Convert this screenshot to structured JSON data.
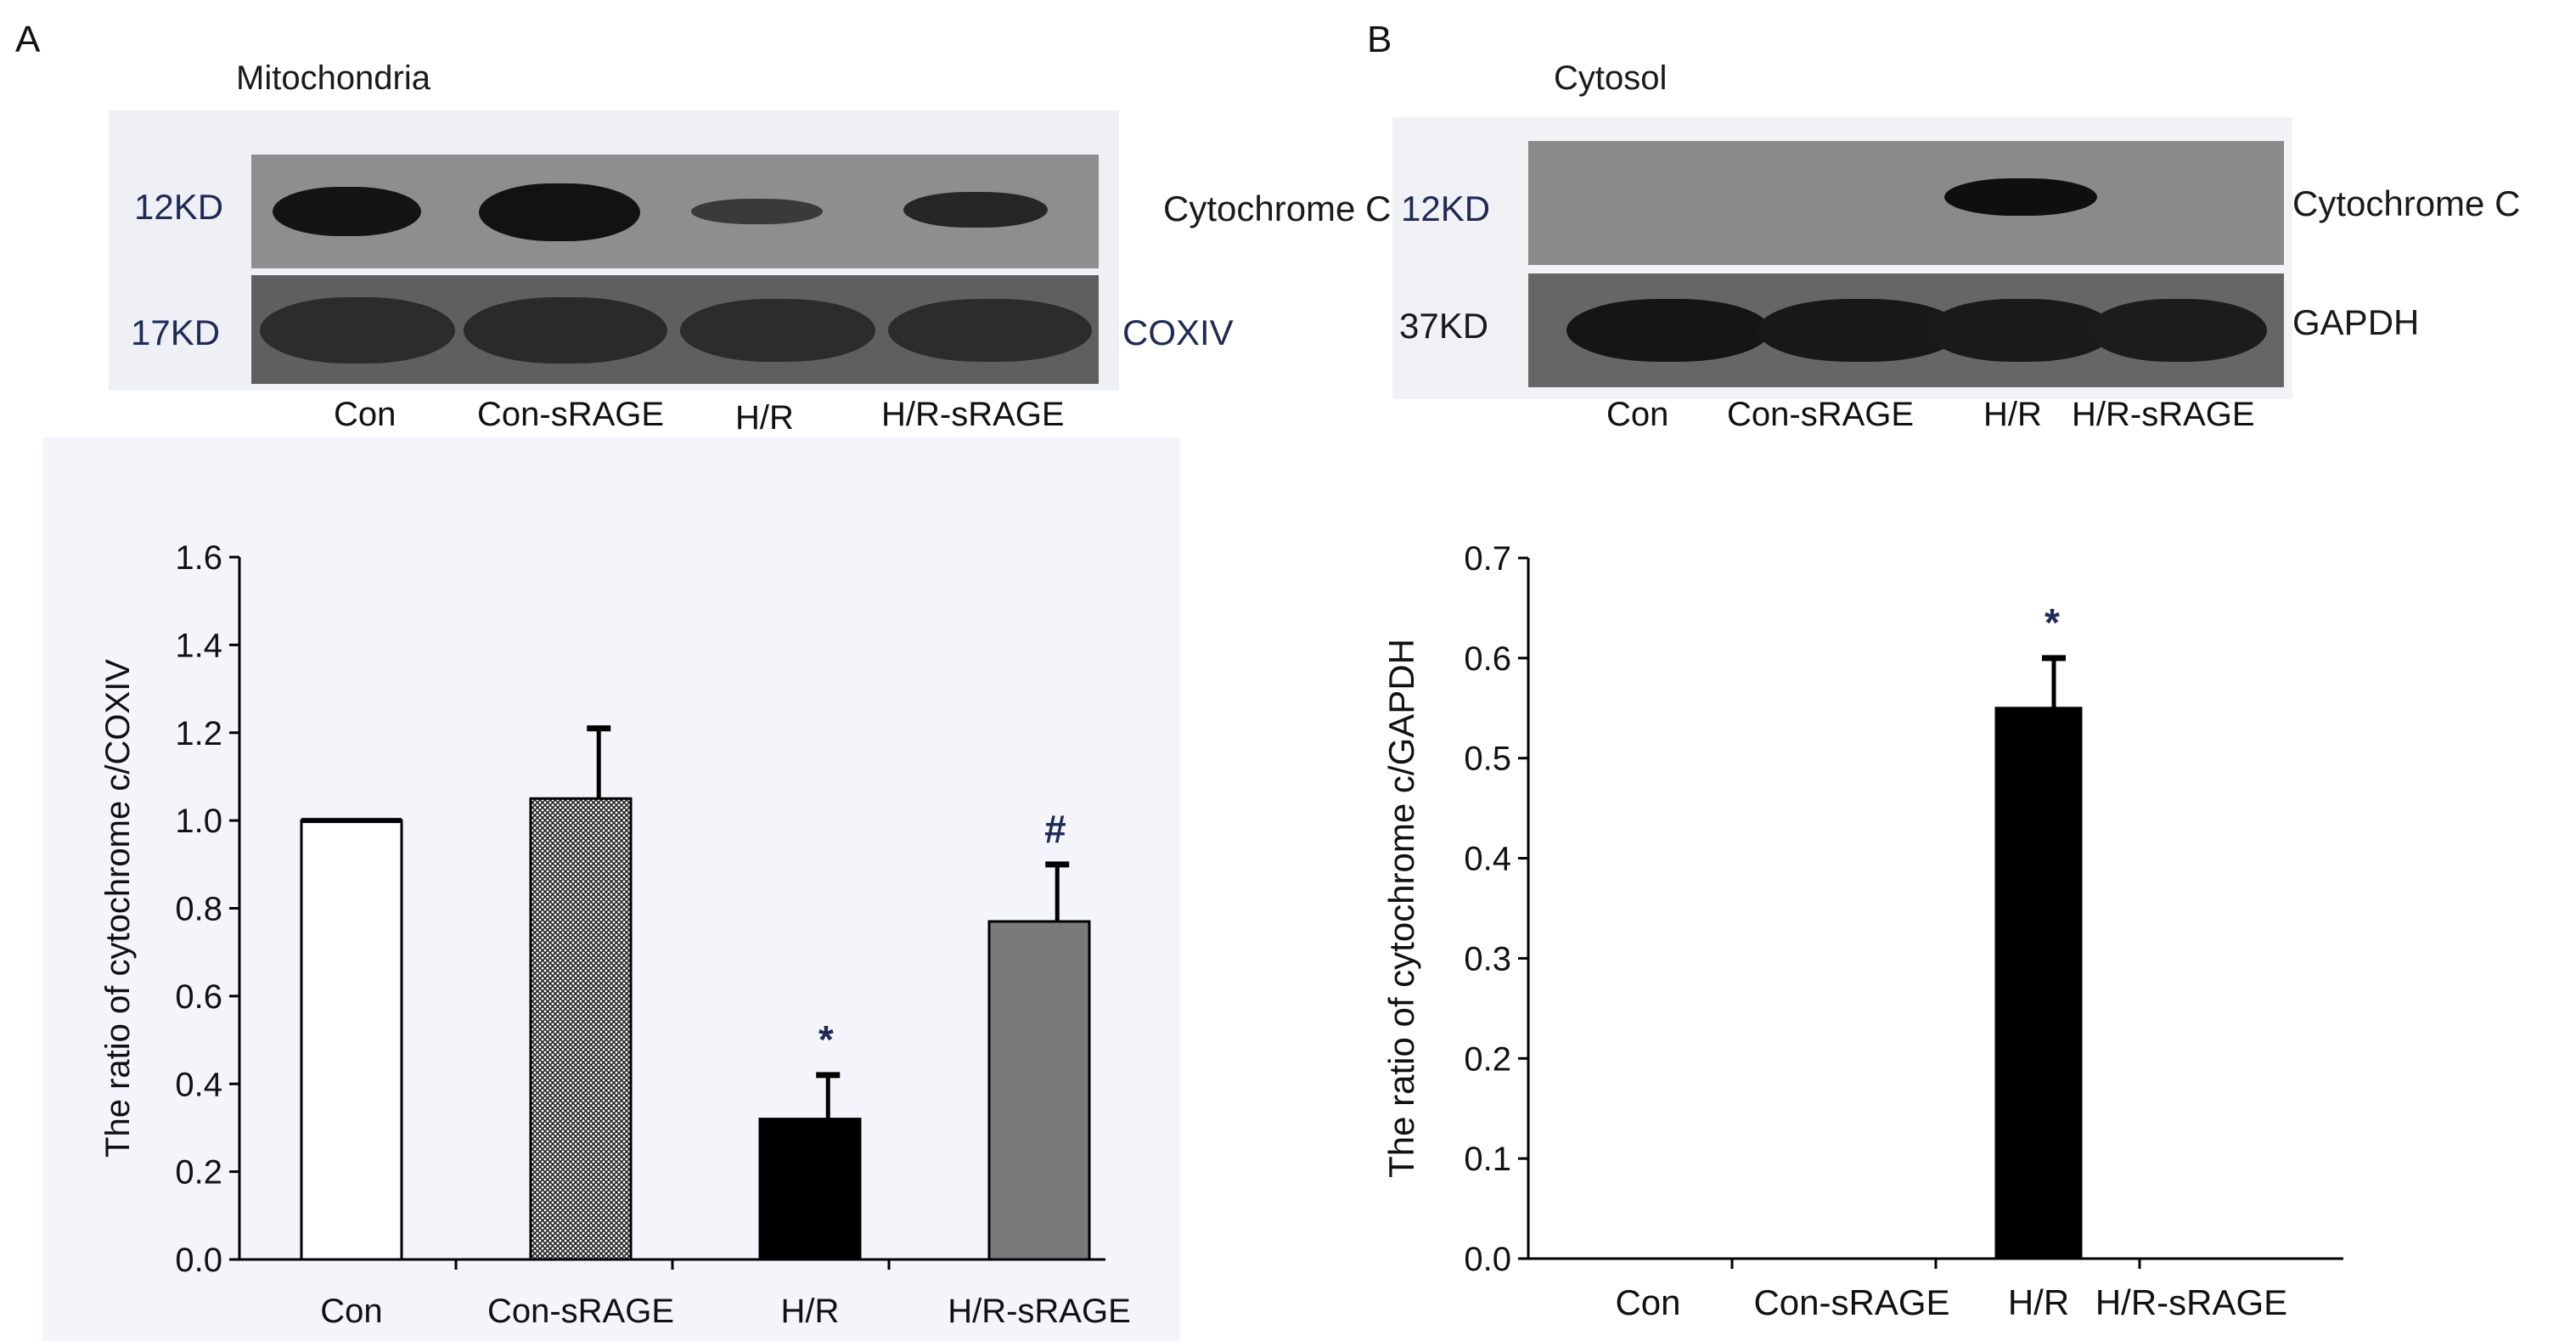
{
  "panels": [
    {
      "letter": "A",
      "blot": {
        "title": "Mitochondria",
        "rows": [
          {
            "kd": "12KD",
            "protein": "Cytochrome C"
          },
          {
            "kd": "17KD",
            "protein": "COXIV"
          }
        ],
        "lanes": [
          "Con",
          "Con-sRAGE",
          "H/R",
          "H/R-sRAGE"
        ]
      }
    },
    {
      "letter": "B",
      "blot": {
        "title": "Cytosol",
        "rows": [
          {
            "kd": "12KD",
            "protein": "Cytochrome C"
          },
          {
            "kd": "37KD",
            "protein": "GAPDH"
          }
        ],
        "lanes": [
          "Con",
          "Con-sRAGE",
          "H/R",
          "H/R-sRAGE"
        ]
      }
    }
  ],
  "chart_data": [
    {
      "type": "bar",
      "categories": [
        "Con",
        "Con-sRAGE",
        "H/R",
        "H/R-sRAGE"
      ],
      "values": [
        1.0,
        1.05,
        0.32,
        0.77
      ],
      "errors": [
        0.0,
        0.16,
        0.1,
        0.13
      ],
      "markers": [
        "",
        "",
        "*",
        "#"
      ],
      "bar_fills": [
        "#ffffff",
        "pattern",
        "#000000",
        "#7a7a7a"
      ],
      "ylabel": "The ratio of cytochrome c/COXIV",
      "xlabel": "",
      "ylim": [
        0,
        1.6
      ],
      "yticks": [
        "0.0",
        "0.2",
        "0.4",
        "0.6",
        "0.8",
        "1.0",
        "1.2",
        "1.4",
        "1.6"
      ],
      "grid": false
    },
    {
      "type": "bar",
      "categories": [
        "Con",
        "Con-sRAGE",
        "H/R",
        "H/R-sRAGE"
      ],
      "values": [
        0,
        0,
        0.55,
        0
      ],
      "errors": [
        0,
        0,
        0.05,
        0
      ],
      "markers": [
        "",
        "",
        "*",
        ""
      ],
      "bar_fills": [
        "#000000",
        "#000000",
        "#000000",
        "#000000"
      ],
      "ylabel": "The ratio of cytochrome c/GAPDH",
      "xlabel": "",
      "ylim": [
        0,
        0.7
      ],
      "yticks": [
        "0.0",
        "0.1",
        "0.2",
        "0.3",
        "0.4",
        "0.5",
        "0.6",
        "0.7"
      ],
      "grid": false
    }
  ]
}
